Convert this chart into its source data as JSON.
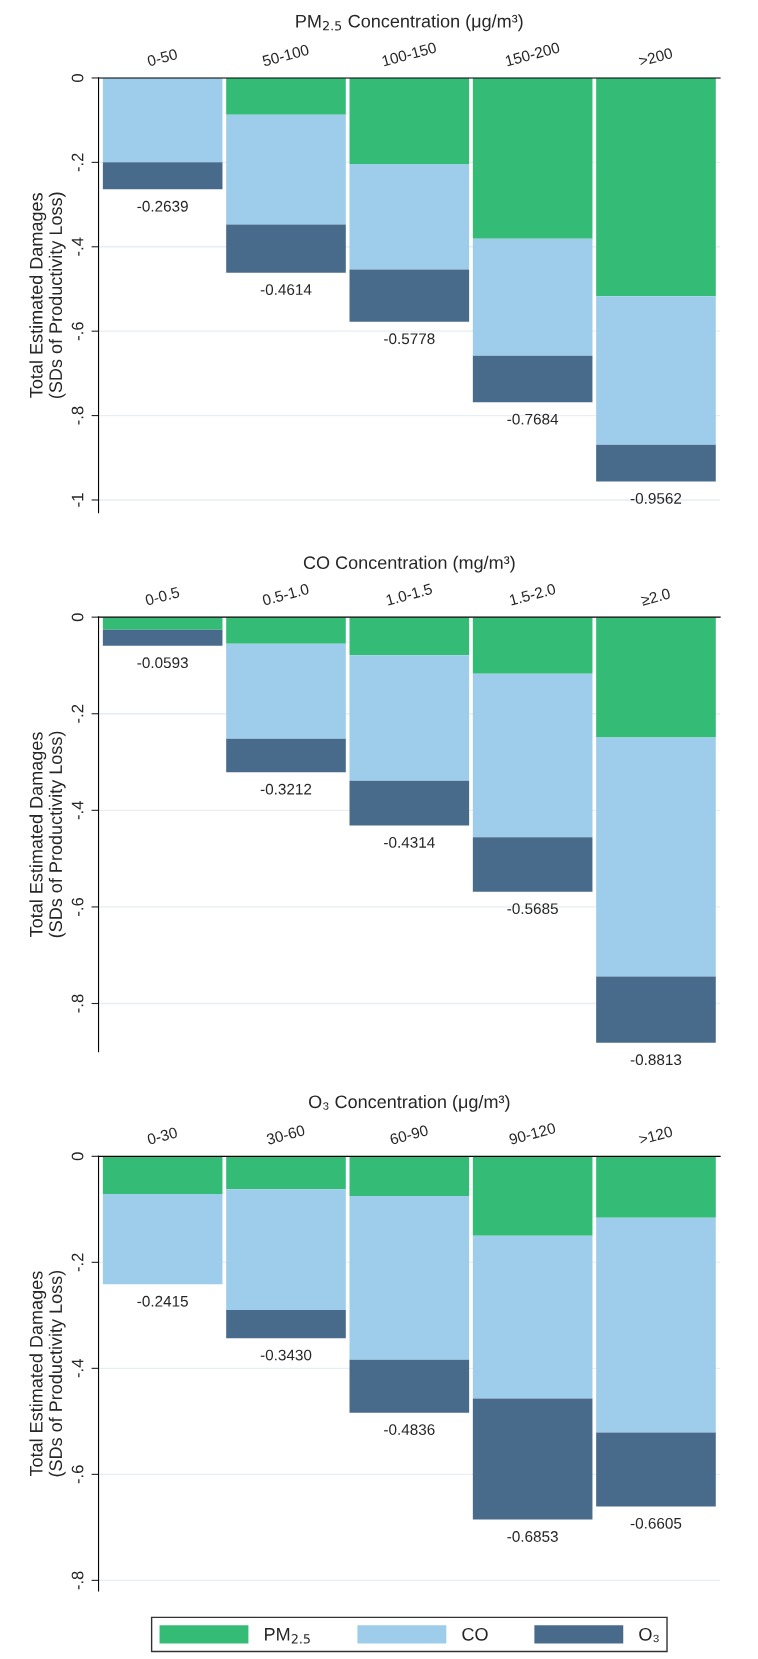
{
  "chart_data": [
    {
      "type": "bar",
      "stacked": true,
      "xlabel": "PM$_{2.5}$ Concentration (μg/m³)",
      "ylabel": "Total Estimated Damages\n(SDs of Productivity Loss)",
      "categories": [
        "0-50",
        "50-100",
        "100-150",
        "150-200",
        ">200"
      ],
      "series": [
        {
          "color": "#34bc77",
          "values": [
            0,
            -0.087,
            -0.204,
            -0.381,
            -0.517
          ]
        },
        {
          "color": "#9ecdeb",
          "values": [
            -0.2,
            -0.26,
            -0.25,
            -0.277,
            -0.352
          ]
        },
        {
          "color": "#486b8b",
          "values": [
            -0.0639,
            -0.1144,
            -0.1238,
            -0.1104,
            -0.0872
          ]
        }
      ],
      "totals": [
        "-0.2639",
        "-0.4614",
        "-0.5778",
        "-0.7684",
        "-0.9562"
      ],
      "ylim": [
        -1.03,
        0
      ],
      "yticks": [
        0,
        {
          "value": -0.2,
          "label": "-.2"
        },
        {
          "value": -0.4,
          "label": "-.4"
        },
        {
          "value": -0.6,
          "label": "-.6"
        },
        {
          "value": -0.8,
          "label": "-.8"
        },
        {
          "value": -1,
          "label": "-1"
        }
      ],
      "grid": "y"
    },
    {
      "type": "bar",
      "stacked": true,
      "xlabel": "CO Concentration (mg/m³)",
      "ylabel": "Total Estimated Damages\n(SDs of Productivity Loss)",
      "categories": [
        "0-0.5",
        "0.5-1.0",
        "1.0-1.5",
        "1.5-2.0",
        "≥2.0"
      ],
      "series": [
        {
          "color": "#34bc77",
          "values": [
            -0.026,
            -0.055,
            -0.079,
            -0.117,
            -0.249
          ]
        },
        {
          "color": "#9ecdeb",
          "values": [
            0,
            -0.197,
            -0.26,
            -0.339,
            -0.495
          ]
        },
        {
          "color": "#486b8b",
          "values": [
            -0.0333,
            -0.0692,
            -0.0924,
            -0.1125,
            -0.1373
          ]
        }
      ],
      "totals": [
        "-0.0593",
        "-0.3212",
        "-0.4314",
        "-0.5685",
        "-0.8813"
      ],
      "ylim": [
        -0.9,
        0
      ],
      "yticks": [
        0,
        {
          "value": -0.2,
          "label": "-.2"
        },
        {
          "value": -0.4,
          "label": "-.4"
        },
        {
          "value": -0.6,
          "label": "-.6"
        },
        {
          "value": -0.8,
          "label": "-.8"
        }
      ],
      "grid": "y"
    },
    {
      "type": "bar",
      "stacked": true,
      "xlabel": "O₃ Concentration (μg/m³)",
      "ylabel": "Total Estimated Damages\n(SDs of Productivity Loss)",
      "categories": [
        "0-30",
        "30-60",
        "60-90",
        "90-120",
        ">120"
      ],
      "series": [
        {
          "name": "PM$_{2.5}$",
          "color": "#34bc77",
          "values": [
            -0.071,
            -0.062,
            -0.075,
            -0.15,
            -0.116
          ]
        },
        {
          "name": "CO",
          "color": "#9ecdeb",
          "values": [
            -0.1705,
            -0.228,
            -0.309,
            -0.307,
            -0.405
          ]
        },
        {
          "name": "O₃",
          "color": "#486b8b",
          "values": [
            0,
            -0.053,
            -0.0996,
            -0.2283,
            -0.1395
          ]
        }
      ],
      "totals": [
        "-0.2415",
        "-0.3430",
        "-0.4836",
        "-0.6853",
        "-0.6605"
      ],
      "ylim": [
        -0.82,
        0
      ],
      "yticks": [
        0,
        {
          "value": -0.2,
          "label": "-.2"
        },
        {
          "value": -0.4,
          "label": "-.4"
        },
        {
          "value": -0.6,
          "label": "-.6"
        },
        {
          "value": -0.8,
          "label": "-.8"
        }
      ],
      "grid": "y",
      "legend": "bottom"
    }
  ]
}
